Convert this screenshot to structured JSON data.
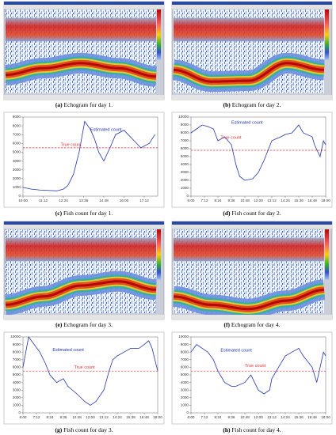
{
  "echograms": [
    {
      "label": "(a)",
      "caption": "Echogram for day 1."
    },
    {
      "label": "(b)",
      "caption": "Echogram for day 2."
    },
    {
      "label": "(e)",
      "caption": "Echogram for day 3."
    },
    {
      "label": "(f)",
      "caption": "Echogram for day 4."
    }
  ],
  "chart_data": [
    {
      "type": "line",
      "label": "(c)",
      "caption": "Fish count for day 1.",
      "x": [
        "10:00",
        "10:30",
        "11:00",
        "11:30",
        "12:00",
        "12:24",
        "12:40",
        "13:00",
        "13:20",
        "13:40",
        "14:00",
        "14:15",
        "14:30",
        "14:48",
        "15:10",
        "15:30",
        "16:00",
        "16:30",
        "17:00",
        "17:30",
        "17:50"
      ],
      "series": [
        {
          "name": "Estimated count",
          "color": "#2233aa",
          "values": [
            1000,
            800,
            700,
            650,
            600,
            800,
            1200,
            2500,
            5000,
            8500,
            7600,
            6500,
            5000,
            4000,
            5500,
            7000,
            7500,
            6500,
            5500,
            6000,
            7000
          ]
        }
      ],
      "reference": {
        "name": "True count",
        "color": "#e03030",
        "value": 5500
      },
      "xlim": [
        "10:00",
        "18:00"
      ],
      "xticks": [
        "10:00",
        "11:12",
        "12:24",
        "13:36",
        "14:48",
        "16:00",
        "17:12"
      ],
      "ylim": [
        0,
        9000
      ],
      "yticks": [
        0,
        1000,
        2000,
        3000,
        4000,
        5000,
        6000,
        7000,
        8000,
        9000
      ]
    },
    {
      "type": "line",
      "label": "(d)",
      "caption": "Fish count for day 2.",
      "x": [
        "6:00",
        "6:30",
        "7:00",
        "7:30",
        "8:00",
        "8:24",
        "9:00",
        "9:36",
        "10:00",
        "10:20",
        "10:48",
        "11:30",
        "12:00",
        "12:30",
        "13:12",
        "13:30",
        "14:00",
        "14:24",
        "15:00",
        "15:36",
        "16:00",
        "16:48",
        "17:00",
        "17:30",
        "17:48",
        "18:00"
      ],
      "series": [
        {
          "name": "Estimated count",
          "color": "#2233aa",
          "values": [
            8000,
            8500,
            9000,
            8800,
            8500,
            7000,
            7500,
            6500,
            4000,
            2500,
            2000,
            2200,
            3000,
            4500,
            7000,
            7200,
            7500,
            7800,
            8000,
            9000,
            8000,
            7500,
            6500,
            5000,
            7000,
            6500
          ]
        }
      ],
      "reference": {
        "name": "True count",
        "color": "#e03030",
        "value": 5800
      },
      "xlim": [
        "6:00",
        "18:00"
      ],
      "xticks": [
        "6:00",
        "7:12",
        "8:24",
        "9:36",
        "10:48",
        "12:00",
        "13:12",
        "14:24",
        "15:36",
        "16:48",
        "18:00"
      ],
      "ylim": [
        0,
        10000
      ],
      "yticks": [
        0,
        1000,
        2000,
        3000,
        4000,
        5000,
        6000,
        7000,
        8000,
        9000,
        10000
      ]
    },
    {
      "type": "line",
      "label": "(g)",
      "caption": "Fish count for day 3.",
      "x": [
        "6:00",
        "6:30",
        "7:00",
        "7:30",
        "8:00",
        "8:24",
        "9:00",
        "9:36",
        "10:00",
        "10:48",
        "11:30",
        "12:00",
        "12:30",
        "13:12",
        "13:40",
        "14:00",
        "14:24",
        "15:00",
        "15:36",
        "16:20",
        "16:48",
        "17:12",
        "17:30",
        "18:00"
      ],
      "series": [
        {
          "name": "Estimated count",
          "color": "#2233aa",
          "values": [
            6000,
            10000,
            9000,
            8000,
            6500,
            5000,
            4000,
            4500,
            3500,
            2500,
            1500,
            1000,
            1500,
            3000,
            5500,
            7000,
            7500,
            8000,
            8500,
            8500,
            9000,
            9500,
            8500,
            5500
          ]
        }
      ],
      "reference": {
        "name": "True count",
        "color": "#e03030",
        "value": 5500
      },
      "xlim": [
        "6:00",
        "18:00"
      ],
      "xticks": [
        "6:00",
        "7:12",
        "8:24",
        "9:36",
        "10:48",
        "12:00",
        "13:12",
        "14:24",
        "15:36",
        "16:48",
        "18:00"
      ],
      "ylim": [
        0,
        10000
      ],
      "yticks": [
        0,
        1000,
        2000,
        3000,
        4000,
        5000,
        6000,
        7000,
        8000,
        9000,
        10000
      ]
    },
    {
      "type": "line",
      "label": "(h)",
      "caption": "Fish count for day 4.",
      "x": [
        "6:00",
        "6:30",
        "7:00",
        "7:30",
        "8:00",
        "8:24",
        "9:00",
        "9:36",
        "10:00",
        "10:48",
        "11:20",
        "12:00",
        "12:30",
        "13:00",
        "13:12",
        "14:00",
        "14:24",
        "15:00",
        "15:36",
        "16:00",
        "16:48",
        "17:12",
        "17:30",
        "17:48",
        "18:00"
      ],
      "series": [
        {
          "name": "Estimated count",
          "color": "#2233aa",
          "values": [
            8000,
            9000,
            8500,
            8000,
            7000,
            5500,
            4000,
            3500,
            3500,
            4000,
            5000,
            3000,
            2500,
            3000,
            4500,
            6500,
            7500,
            8000,
            8500,
            7500,
            6000,
            4000,
            6000,
            8000,
            7500
          ]
        }
      ],
      "reference": {
        "name": "True count",
        "color": "#e03030",
        "value": 5500
      },
      "xlim": [
        "6:00",
        "18:00"
      ],
      "xticks": [
        "6:00",
        "7:12",
        "8:24",
        "9:36",
        "10:48",
        "12:00",
        "13:12",
        "14:24",
        "15:36",
        "16:48",
        "18:00"
      ],
      "ylim": [
        0,
        10000
      ],
      "yticks": [
        0,
        1000,
        2000,
        3000,
        4000,
        5000,
        6000,
        7000,
        8000,
        9000,
        10000
      ]
    }
  ]
}
